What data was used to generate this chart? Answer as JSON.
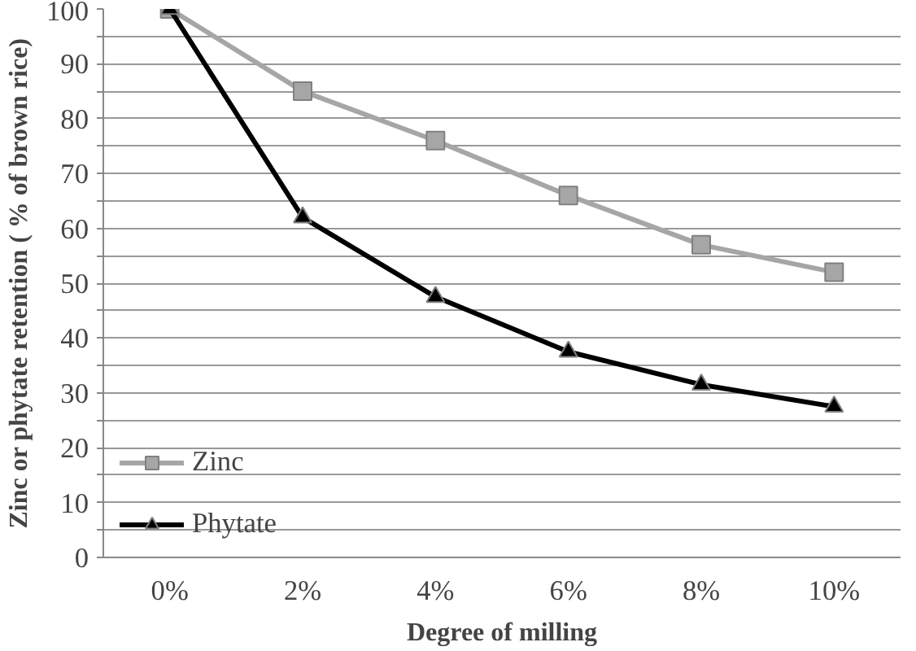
{
  "chart_data": {
    "type": "line",
    "xlabel": "Degree of milling",
    "ylabel": "Zinc or phytate retention ( % of brown rice)",
    "categories": [
      "0%",
      "2%",
      "4%",
      "6%",
      "8%",
      "10%"
    ],
    "series": [
      {
        "name": "Zinc",
        "color": "#a6a6a6",
        "marker": "square",
        "values": [
          100,
          85,
          76,
          66,
          57,
          52
        ]
      },
      {
        "name": "Phytate",
        "color": "#000000",
        "marker": "triangle",
        "values": [
          100,
          62,
          47.5,
          37.5,
          31.5,
          27.5
        ]
      }
    ],
    "ylim": [
      0,
      100
    ],
    "yticks": [
      0,
      {
        "value": 5,
        "label": null
      },
      10,
      {
        "value": 15,
        "label": null
      },
      20,
      {
        "value": 25,
        "label": null
      },
      30,
      {
        "value": 35,
        "label": null
      },
      40,
      {
        "value": 45,
        "label": null
      },
      50,
      {
        "value": 55,
        "label": null
      },
      60,
      {
        "value": 65,
        "label": null
      },
      70,
      {
        "value": 75,
        "label": null
      },
      80,
      {
        "value": 85,
        "label": null
      },
      90,
      {
        "value": 95,
        "label": null
      },
      100
    ],
    "grid": "y",
    "legend": "bottom left",
    "line_style": "solid"
  }
}
